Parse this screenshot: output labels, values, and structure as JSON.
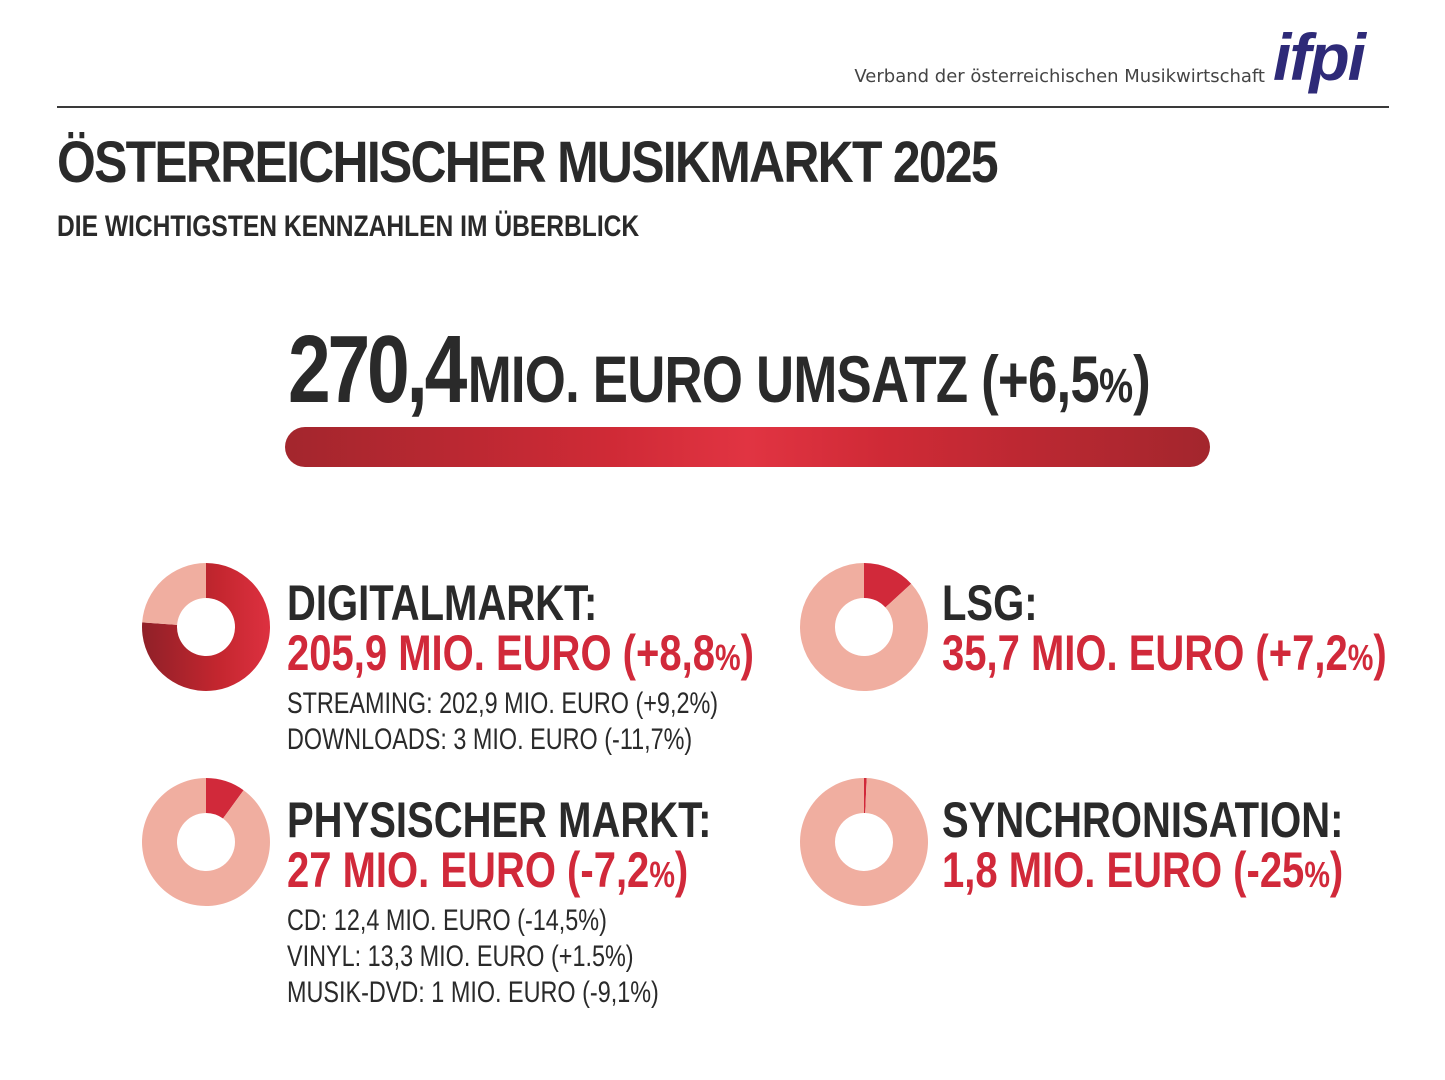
{
  "header": {
    "org_name": "Verband der österreichischen Musikwirtschaft",
    "logo_text": "ifpi",
    "logo_color": "#2e2a78"
  },
  "title": "ÖSTERREICHISCHER MUSIKMARKT 2025",
  "subtitle": "DIE WICHTIGSTEN KENNZAHLEN IM ÜBERBLICK",
  "total": {
    "value": "270,4",
    "label": "MIO. EURO UMSATZ (+6,5",
    "percent_sign": "%",
    "close": ")"
  },
  "colors": {
    "accent": "#d1293a",
    "dark_slice": "#b82530",
    "light_slice": "#f0aea0",
    "text": "#2a2a2a"
  },
  "segments": {
    "digital": {
      "label": "DIGITALMARKT:",
      "value": "205,9 MIO. EURO (+8,8",
      "percent_sign": "%",
      "close": ")",
      "details": [
        "STREAMING: 202,9 MIO. EURO (+9,2%)",
        "DOWNLOADS: 3 MIO. EURO (-11,7%)"
      ]
    },
    "lsg": {
      "label": "LSG:",
      "value": "35,7 MIO. EURO (+7,2",
      "percent_sign": "%",
      "close": ")"
    },
    "physical": {
      "label": "PHYSISCHER MARKT:",
      "value": "27 MIO. EURO (-7,2",
      "percent_sign": "%",
      "close": ")",
      "details": [
        "CD: 12,4 MIO. EURO (-14,5%)",
        "VINYL: 13,3 MIO. EURO (+1.5%)",
        "MUSIK-DVD: 1 MIO. EURO (-9,1%)"
      ]
    },
    "sync": {
      "label": "SYNCHRONISATION:",
      "value": "1,8 MIO. EURO (-25",
      "percent_sign": "%",
      "close": ")"
    }
  },
  "chart_data": [
    {
      "type": "pie",
      "series": [
        {
          "values": [
            205.9,
            64.5
          ]
        }
      ],
      "highlight_index": 0
    },
    {
      "type": "pie",
      "series": [
        {
          "values": [
            35.7,
            234.7
          ]
        }
      ],
      "highlight_index": 0
    },
    {
      "type": "pie",
      "series": [
        {
          "values": [
            27,
            243.4
          ]
        }
      ],
      "highlight_index": 0
    },
    {
      "type": "pie",
      "series": [
        {
          "values": [
            1.8,
            268.6
          ]
        }
      ],
      "highlight_index": 0
    }
  ]
}
